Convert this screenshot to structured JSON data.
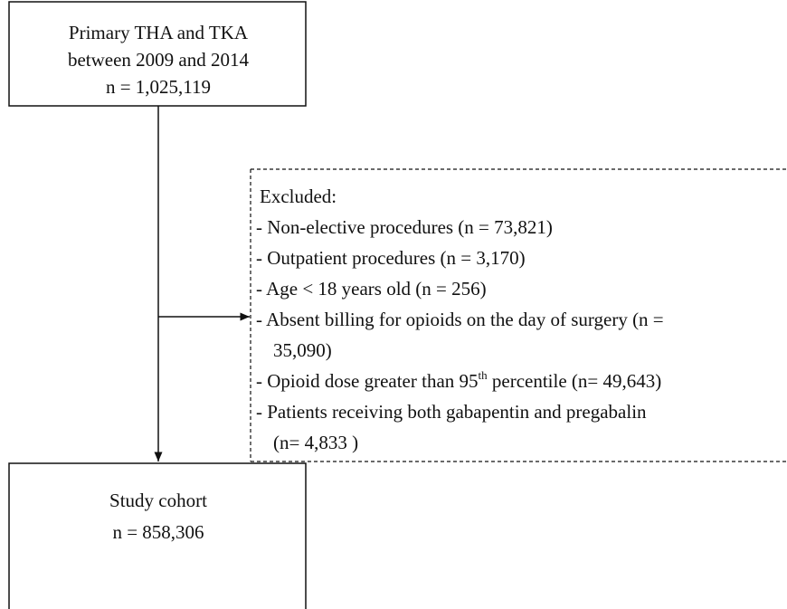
{
  "top_box": {
    "lines": [
      "Primary THA and TKA",
      "between 2009 and 2014",
      "n = 1,025,119"
    ]
  },
  "excluded": {
    "title": "Excluded:",
    "lines": [
      "- Non-elective procedures (n = 73,821)",
      "- Outpatient procedures (n = 3,170)",
      "- Age < 18 years old (n = 256)",
      "- Absent billing for opioids on the day of surgery (n =",
      "35,090)",
      {
        "before": "- Opioid dose greater than 95",
        "sup": "th",
        "after": " percentile (n= 49,643)"
      },
      "- Patients receiving both gabapentin and pregabalin",
      "(n= 4,833 )"
    ]
  },
  "bottom_box": {
    "lines": [
      "Study cohort",
      "n = 858,306"
    ]
  }
}
